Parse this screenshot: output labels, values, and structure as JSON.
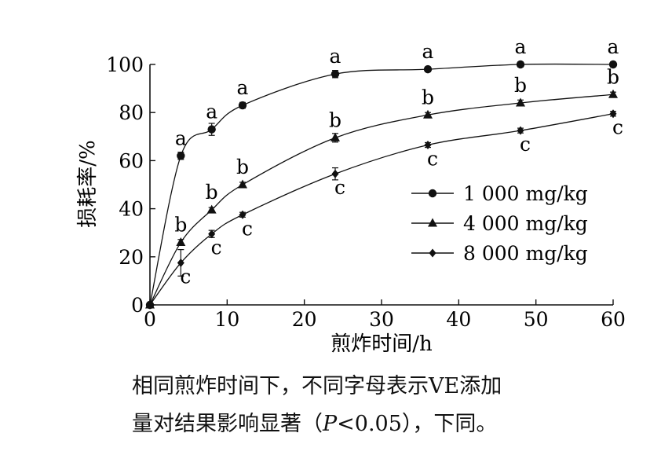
{
  "chart_data": {
    "type": "line",
    "xlabel": "煎炸时间/h",
    "ylabel": "损耗率/%",
    "xlim": [
      0,
      60
    ],
    "ylim": [
      0,
      100
    ],
    "x_ticks": [
      "0",
      "10",
      "20",
      "30",
      "40",
      "50",
      "60"
    ],
    "y_ticks": [
      "0",
      "20",
      "40",
      "60",
      "80",
      "100"
    ],
    "legend_position": "center-right",
    "series": [
      {
        "name": "1 000 mg/kg",
        "marker": "circle",
        "x": [
          0,
          4,
          8,
          12,
          24,
          36,
          48,
          60
        ],
        "y": [
          0,
          62,
          73,
          83,
          96,
          98,
          100,
          100
        ],
        "error": [
          0,
          1.5,
          2.5,
          1.2,
          1.5,
          1,
          1,
          1
        ],
        "labels": [
          "",
          "a",
          "a",
          "a",
          "a",
          "a",
          "a",
          "a"
        ]
      },
      {
        "name": "4 000 mg/kg",
        "marker": "triangle",
        "x": [
          0,
          4,
          8,
          12,
          24,
          36,
          48,
          60
        ],
        "y": [
          0,
          26,
          39.5,
          50,
          69.5,
          79,
          84,
          87.5
        ],
        "error": [
          0,
          1.2,
          1,
          1,
          1.8,
          1,
          1.2,
          1
        ],
        "labels": [
          "",
          "b",
          "b",
          "b",
          "b",
          "b",
          "b",
          "b"
        ]
      },
      {
        "name": "8 000 mg/kg",
        "marker": "diamond",
        "x": [
          0,
          4,
          8,
          12,
          24,
          36,
          48,
          60
        ],
        "y": [
          0,
          17.5,
          29.5,
          37.5,
          54.5,
          66.5,
          72.5,
          79.5
        ],
        "error": [
          0,
          5.5,
          1.5,
          1,
          2.5,
          1,
          1,
          1
        ],
        "labels": [
          "",
          "c",
          "c",
          "c",
          "c",
          "c",
          "c",
          "c"
        ]
      }
    ]
  },
  "caption": {
    "line1": "相同煎炸时间下，不同字母表示VE添加",
    "line2_before": "量对结果影响显著（",
    "line2_italic": "P",
    "line2_after": "<0.05），下同。"
  }
}
